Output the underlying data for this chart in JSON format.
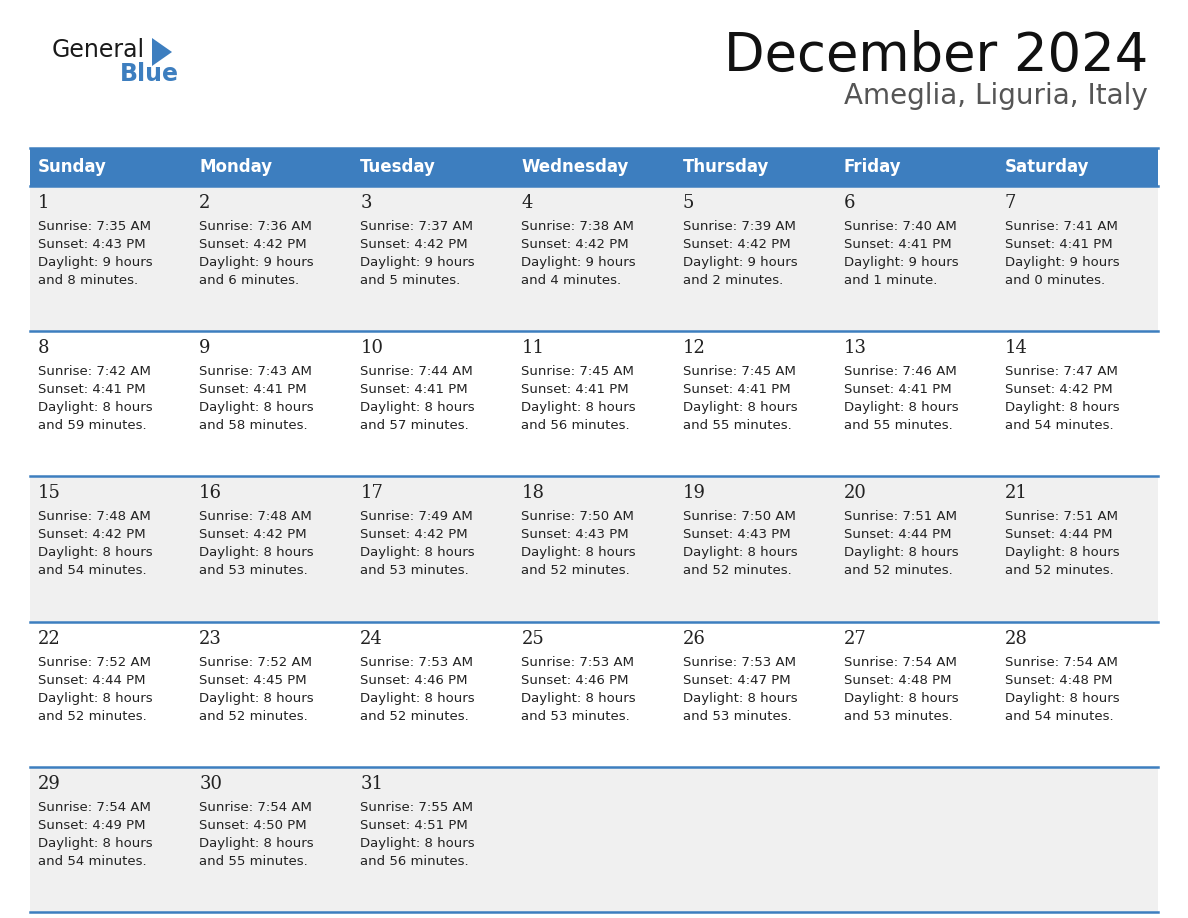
{
  "title": "December 2024",
  "subtitle": "Ameglia, Liguria, Italy",
  "header_color": "#3d7ebf",
  "header_text_color": "#ffffff",
  "days_of_week": [
    "Sunday",
    "Monday",
    "Tuesday",
    "Wednesday",
    "Thursday",
    "Friday",
    "Saturday"
  ],
  "bg_color": "#ffffff",
  "cell_bg_even": "#f0f0f0",
  "cell_bg_odd": "#ffffff",
  "divider_color": "#3d7ebf",
  "text_color": "#222222",
  "logo_general_color": "#1a1a1a",
  "logo_blue_color": "#3d7ebf",
  "calendar_data": [
    [
      {
        "day": 1,
        "sunrise": "7:35 AM",
        "sunset": "4:43 PM",
        "daylight_hours": 9,
        "daylight_minutes": 8
      },
      {
        "day": 2,
        "sunrise": "7:36 AM",
        "sunset": "4:42 PM",
        "daylight_hours": 9,
        "daylight_minutes": 6
      },
      {
        "day": 3,
        "sunrise": "7:37 AM",
        "sunset": "4:42 PM",
        "daylight_hours": 9,
        "daylight_minutes": 5
      },
      {
        "day": 4,
        "sunrise": "7:38 AM",
        "sunset": "4:42 PM",
        "daylight_hours": 9,
        "daylight_minutes": 4
      },
      {
        "day": 5,
        "sunrise": "7:39 AM",
        "sunset": "4:42 PM",
        "daylight_hours": 9,
        "daylight_minutes": 2
      },
      {
        "day": 6,
        "sunrise": "7:40 AM",
        "sunset": "4:41 PM",
        "daylight_hours": 9,
        "daylight_minutes": 1
      },
      {
        "day": 7,
        "sunrise": "7:41 AM",
        "sunset": "4:41 PM",
        "daylight_hours": 9,
        "daylight_minutes": 0
      }
    ],
    [
      {
        "day": 8,
        "sunrise": "7:42 AM",
        "sunset": "4:41 PM",
        "daylight_hours": 8,
        "daylight_minutes": 59
      },
      {
        "day": 9,
        "sunrise": "7:43 AM",
        "sunset": "4:41 PM",
        "daylight_hours": 8,
        "daylight_minutes": 58
      },
      {
        "day": 10,
        "sunrise": "7:44 AM",
        "sunset": "4:41 PM",
        "daylight_hours": 8,
        "daylight_minutes": 57
      },
      {
        "day": 11,
        "sunrise": "7:45 AM",
        "sunset": "4:41 PM",
        "daylight_hours": 8,
        "daylight_minutes": 56
      },
      {
        "day": 12,
        "sunrise": "7:45 AM",
        "sunset": "4:41 PM",
        "daylight_hours": 8,
        "daylight_minutes": 55
      },
      {
        "day": 13,
        "sunrise": "7:46 AM",
        "sunset": "4:41 PM",
        "daylight_hours": 8,
        "daylight_minutes": 55
      },
      {
        "day": 14,
        "sunrise": "7:47 AM",
        "sunset": "4:42 PM",
        "daylight_hours": 8,
        "daylight_minutes": 54
      }
    ],
    [
      {
        "day": 15,
        "sunrise": "7:48 AM",
        "sunset": "4:42 PM",
        "daylight_hours": 8,
        "daylight_minutes": 54
      },
      {
        "day": 16,
        "sunrise": "7:48 AM",
        "sunset": "4:42 PM",
        "daylight_hours": 8,
        "daylight_minutes": 53
      },
      {
        "day": 17,
        "sunrise": "7:49 AM",
        "sunset": "4:42 PM",
        "daylight_hours": 8,
        "daylight_minutes": 53
      },
      {
        "day": 18,
        "sunrise": "7:50 AM",
        "sunset": "4:43 PM",
        "daylight_hours": 8,
        "daylight_minutes": 52
      },
      {
        "day": 19,
        "sunrise": "7:50 AM",
        "sunset": "4:43 PM",
        "daylight_hours": 8,
        "daylight_minutes": 52
      },
      {
        "day": 20,
        "sunrise": "7:51 AM",
        "sunset": "4:44 PM",
        "daylight_hours": 8,
        "daylight_minutes": 52
      },
      {
        "day": 21,
        "sunrise": "7:51 AM",
        "sunset": "4:44 PM",
        "daylight_hours": 8,
        "daylight_minutes": 52
      }
    ],
    [
      {
        "day": 22,
        "sunrise": "7:52 AM",
        "sunset": "4:44 PM",
        "daylight_hours": 8,
        "daylight_minutes": 52
      },
      {
        "day": 23,
        "sunrise": "7:52 AM",
        "sunset": "4:45 PM",
        "daylight_hours": 8,
        "daylight_minutes": 52
      },
      {
        "day": 24,
        "sunrise": "7:53 AM",
        "sunset": "4:46 PM",
        "daylight_hours": 8,
        "daylight_minutes": 52
      },
      {
        "day": 25,
        "sunrise": "7:53 AM",
        "sunset": "4:46 PM",
        "daylight_hours": 8,
        "daylight_minutes": 53
      },
      {
        "day": 26,
        "sunrise": "7:53 AM",
        "sunset": "4:47 PM",
        "daylight_hours": 8,
        "daylight_minutes": 53
      },
      {
        "day": 27,
        "sunrise": "7:54 AM",
        "sunset": "4:48 PM",
        "daylight_hours": 8,
        "daylight_minutes": 53
      },
      {
        "day": 28,
        "sunrise": "7:54 AM",
        "sunset": "4:48 PM",
        "daylight_hours": 8,
        "daylight_minutes": 54
      }
    ],
    [
      {
        "day": 29,
        "sunrise": "7:54 AM",
        "sunset": "4:49 PM",
        "daylight_hours": 8,
        "daylight_minutes": 54
      },
      {
        "day": 30,
        "sunrise": "7:54 AM",
        "sunset": "4:50 PM",
        "daylight_hours": 8,
        "daylight_minutes": 55
      },
      {
        "day": 31,
        "sunrise": "7:55 AM",
        "sunset": "4:51 PM",
        "daylight_hours": 8,
        "daylight_minutes": 56
      },
      null,
      null,
      null,
      null
    ]
  ]
}
